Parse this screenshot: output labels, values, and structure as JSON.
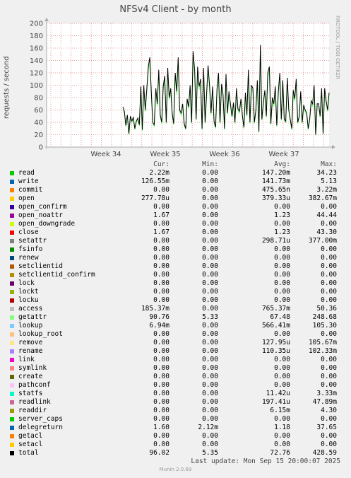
{
  "title": "NFSv4 Client - by month",
  "ylabel": "requests / second",
  "watermark": "RRDTOOL / TOBI OETIKER",
  "footer": {
    "last_update": "Last update: Mon Sep 15 20:00:07 2025",
    "version": "Munin 2.0.69"
  },
  "legend_headers": {
    "cur": "Cur:",
    "min": "Min:",
    "avg": "Avg:",
    "max": "Max:"
  },
  "legend": [
    {
      "name": "read",
      "color": "#00cc00",
      "cur": "2.22m",
      "min": "0.00",
      "avg": "147.20m",
      "max": "34.23"
    },
    {
      "name": "write",
      "color": "#0066b3",
      "cur": "126.55m",
      "min": "0.00",
      "avg": "141.73m",
      "max": "5.13"
    },
    {
      "name": "commit",
      "color": "#ff8000",
      "cur": "0.00",
      "min": "0.00",
      "avg": "475.65n",
      "max": "3.22m"
    },
    {
      "name": "open",
      "color": "#ffcc00",
      "cur": "277.78u",
      "min": "0.00",
      "avg": "379.33u",
      "max": "382.67m"
    },
    {
      "name": "open_confirm",
      "color": "#330099",
      "cur": "0.00",
      "min": "0.00",
      "avg": "0.00",
      "max": "0.00"
    },
    {
      "name": "open_noattr",
      "color": "#990099",
      "cur": "1.67",
      "min": "0.00",
      "avg": "1.23",
      "max": "44.44"
    },
    {
      "name": "open_downgrade",
      "color": "#ccff00",
      "cur": "0.00",
      "min": "0.00",
      "avg": "0.00",
      "max": "0.00"
    },
    {
      "name": "close",
      "color": "#ff0000",
      "cur": "1.67",
      "min": "0.00",
      "avg": "1.23",
      "max": "43.30"
    },
    {
      "name": "setattr",
      "color": "#808080",
      "cur": "0.00",
      "min": "0.00",
      "avg": "298.71u",
      "max": "377.00m"
    },
    {
      "name": "fsinfo",
      "color": "#008f00",
      "cur": "0.00",
      "min": "0.00",
      "avg": "0.00",
      "max": "0.00"
    },
    {
      "name": "renew",
      "color": "#00487d",
      "cur": "0.00",
      "min": "0.00",
      "avg": "0.00",
      "max": "0.00"
    },
    {
      "name": "setclientid",
      "color": "#b35a00",
      "cur": "0.00",
      "min": "0.00",
      "avg": "0.00",
      "max": "0.00"
    },
    {
      "name": "setclientid_confirm",
      "color": "#b38f00",
      "cur": "0.00",
      "min": "0.00",
      "avg": "0.00",
      "max": "0.00"
    },
    {
      "name": "lock",
      "color": "#6b006b",
      "cur": "0.00",
      "min": "0.00",
      "avg": "0.00",
      "max": "0.00"
    },
    {
      "name": "lockt",
      "color": "#8fb300",
      "cur": "0.00",
      "min": "0.00",
      "avg": "0.00",
      "max": "0.00"
    },
    {
      "name": "locku",
      "color": "#b30000",
      "cur": "0.00",
      "min": "0.00",
      "avg": "0.00",
      "max": "0.00"
    },
    {
      "name": "access",
      "color": "#bebebe",
      "cur": "185.37m",
      "min": "0.00",
      "avg": "765.37m",
      "max": "50.36"
    },
    {
      "name": "getattr",
      "color": "#80ff80",
      "cur": "90.76",
      "min": "5.33",
      "avg": "67.48",
      "max": "248.68"
    },
    {
      "name": "lookup",
      "color": "#80c9ff",
      "cur": "6.94m",
      "min": "0.00",
      "avg": "566.41m",
      "max": "105.30"
    },
    {
      "name": "lookup_root",
      "color": "#ffc080",
      "cur": "0.00",
      "min": "0.00",
      "avg": "0.00",
      "max": "0.00"
    },
    {
      "name": "remove",
      "color": "#ffe680",
      "cur": "0.00",
      "min": "0.00",
      "avg": "127.95u",
      "max": "105.67m"
    },
    {
      "name": "rename",
      "color": "#aa80ff",
      "cur": "0.00",
      "min": "0.00",
      "avg": "110.35u",
      "max": "102.33m"
    },
    {
      "name": "link",
      "color": "#ee00cc",
      "cur": "0.00",
      "min": "0.00",
      "avg": "0.00",
      "max": "0.00"
    },
    {
      "name": "symlink",
      "color": "#ff8080",
      "cur": "0.00",
      "min": "0.00",
      "avg": "0.00",
      "max": "0.00"
    },
    {
      "name": "create",
      "color": "#666600",
      "cur": "0.00",
      "min": "0.00",
      "avg": "0.00",
      "max": "0.00"
    },
    {
      "name": "pathconf",
      "color": "#ffbfff",
      "cur": "0.00",
      "min": "0.00",
      "avg": "0.00",
      "max": "0.00"
    },
    {
      "name": "statfs",
      "color": "#00ffcc",
      "cur": "0.00",
      "min": "0.00",
      "avg": "11.42u",
      "max": "3.33m"
    },
    {
      "name": "readlink",
      "color": "#cc6699",
      "cur": "0.00",
      "min": "0.00",
      "avg": "197.41u",
      "max": "47.89m"
    },
    {
      "name": "readdir",
      "color": "#999900",
      "cur": "0.00",
      "min": "0.00",
      "avg": "6.15m",
      "max": "4.30"
    },
    {
      "name": "server_caps",
      "color": "#00cc00",
      "cur": "0.00",
      "min": "0.00",
      "avg": "0.00",
      "max": "0.00"
    },
    {
      "name": "delegreturn",
      "color": "#0066b3",
      "cur": "1.60",
      "min": "2.12m",
      "avg": "1.18",
      "max": "37.65"
    },
    {
      "name": "getacl",
      "color": "#ff8000",
      "cur": "0.00",
      "min": "0.00",
      "avg": "0.00",
      "max": "0.00"
    },
    {
      "name": "setacl",
      "color": "#ffcc00",
      "cur": "0.00",
      "min": "0.00",
      "avg": "0.00",
      "max": "0.00"
    },
    {
      "name": "total",
      "color": "#000000",
      "cur": "96.02",
      "min": "5.35",
      "avg": "72.76",
      "max": "428.59"
    }
  ],
  "chart_data": {
    "type": "line",
    "title": "NFSv4 Client - by month",
    "ylabel": "requests / second",
    "ylim": [
      0,
      200
    ],
    "yticks": [
      0,
      20,
      40,
      60,
      80,
      100,
      120,
      140,
      160,
      180,
      200
    ],
    "xticks": [
      "Week 34",
      "Week 35",
      "Week 36",
      "Week 37"
    ],
    "grid": true,
    "series": [
      {
        "name": "total",
        "color": "#000000",
        "values": [
          65,
          58,
          35,
          52,
          22,
          50,
          42,
          48,
          30,
          42,
          47,
          36,
          98,
          28,
          100,
          60,
          95,
          130,
          145,
          90,
          40,
          36,
          95,
          70,
          125,
          52,
          40,
          98,
          115,
          40,
          128,
          80,
          95,
          55,
          38,
          120,
          90,
          145,
          60,
          55,
          70,
          38,
          30,
          78,
          65,
          100,
          40,
          155,
          125,
          45,
          130,
          98,
          110,
          30,
          128,
          40,
          85,
          132,
          100,
          55,
          98,
          42,
          32,
          95,
          120,
          40,
          102,
          85,
          30,
          118,
          55,
          90,
          70,
          50,
          72,
          40,
          95,
          62,
          58,
          78,
          50,
          32,
          88,
          52,
          125,
          40,
          100,
          95,
          40,
          60,
          108,
          25,
          165,
          45,
          72,
          92,
          50,
          120,
          130,
          38,
          80,
          70,
          98,
          35,
          90,
          120,
          45,
          108,
          45,
          42,
          112,
          60,
          45,
          30,
          92,
          78,
          110,
          40,
          50,
          90,
          40,
          68,
          60,
          55,
          30,
          45,
          75,
          70,
          100,
          20,
          70,
          70,
          50,
          95,
          22,
          95,
          75,
          60,
          88
        ]
      },
      {
        "name": "getattr",
        "color": "#80ff80",
        "values": [
          60,
          55,
          33,
          50,
          20,
          48,
          40,
          46,
          28,
          40,
          45,
          34,
          93,
          26,
          95,
          57,
          90,
          124,
          138,
          85,
          38,
          34,
          90,
          66,
          119,
          49,
          38,
          93,
          109,
          38,
          122,
          76,
          90,
          52,
          36,
          114,
          85,
          138,
          57,
          52,
          66,
          36,
          28,
          74,
          62,
          95,
          38,
          147,
          119,
          43,
          124,
          93,
          105,
          28,
          122,
          38,
          81,
          125,
          95,
          52,
          93,
          40,
          30,
          90,
          114,
          38,
          97,
          81,
          28,
          112,
          52,
          86,
          66,
          48,
          68,
          38,
          90,
          59,
          55,
          74,
          48,
          30,
          84,
          49,
          119,
          38,
          95,
          90,
          38,
          57,
          103,
          24,
          157,
          43,
          68,
          87,
          48,
          114,
          124,
          36,
          76,
          66,
          93,
          33,
          86,
          114,
          43,
          103,
          43,
          40,
          106,
          57,
          43,
          28,
          87,
          74,
          105,
          38,
          48,
          86,
          38,
          65,
          57,
          52,
          28,
          43,
          71,
          66,
          95,
          19,
          66,
          66,
          48,
          90,
          21,
          90,
          71,
          57,
          84
        ]
      }
    ]
  }
}
